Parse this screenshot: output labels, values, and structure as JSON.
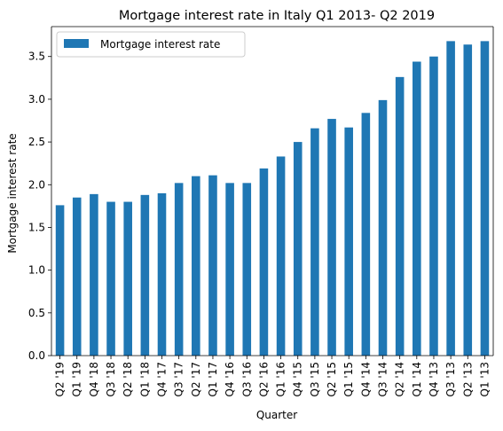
{
  "colors": {
    "bar": "#1f77b4",
    "axis": "#000000",
    "legend_border": "#cccccc",
    "background": "#ffffff"
  },
  "chart_data": {
    "type": "bar",
    "title": "Mortgage interest rate in Italy Q1 2013- Q2 2019",
    "xlabel": "Quarter",
    "ylabel": "Mortgage interest rate",
    "ylim": [
      0,
      3.85
    ],
    "yticks": [
      "0.0",
      "0.5",
      "1.0",
      "1.5",
      "2.0",
      "2.5",
      "3.0",
      "3.5"
    ],
    "grid": false,
    "legend": {
      "placement": "top-left",
      "entries": [
        "Mortgage interest rate"
      ]
    },
    "categories": [
      "Q2 '19",
      "Q1 '19",
      "Q4 '18",
      "Q3 '18",
      "Q2 '18",
      "Q1 '18",
      "Q4 '17",
      "Q3 '17",
      "Q2 '17",
      "Q1 '17",
      "Q4 '16",
      "Q3 '16",
      "Q2 '16",
      "Q1 '16",
      "Q4 '15",
      "Q3 '15",
      "Q2 '15",
      "Q1 '15",
      "Q4 '14",
      "Q3 '14",
      "Q2 '14",
      "Q1 '14",
      "Q4 '13",
      "Q3 '13",
      "Q2 '13",
      "Q1 '13"
    ],
    "series": [
      {
        "name": "Mortgage interest rate",
        "values": [
          1.76,
          1.85,
          1.89,
          1.8,
          1.8,
          1.88,
          1.9,
          2.02,
          2.1,
          2.11,
          2.02,
          2.02,
          2.19,
          2.33,
          2.5,
          2.66,
          2.77,
          2.67,
          2.84,
          2.99,
          3.26,
          3.44,
          3.5,
          3.68,
          3.64,
          3.68
        ]
      }
    ]
  }
}
